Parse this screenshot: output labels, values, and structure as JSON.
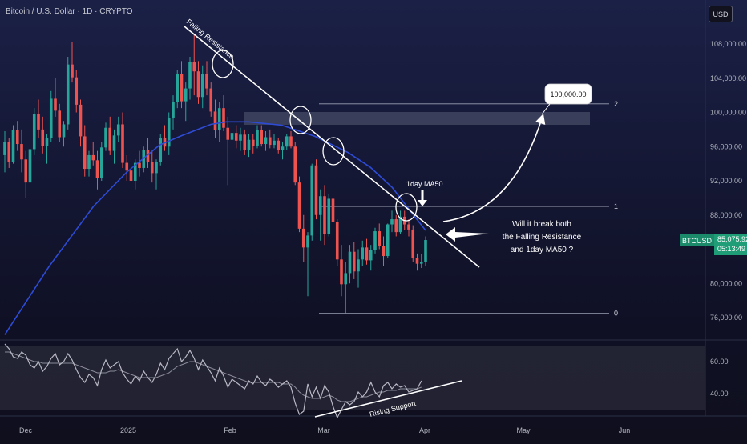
{
  "header": {
    "title": "Bitcoin / U.S. Dollar · 1D · CRYPTO"
  },
  "toolbar": {
    "currency": "USD"
  },
  "price_tag": {
    "symbol": "BTCUSD",
    "price": "85,075.92",
    "countdown": "05:13:49"
  },
  "colors": {
    "up": "#26a69a",
    "down": "#ef5350",
    "ma50": "#2e4bd6",
    "annotation": "#ffffff",
    "oscillator": "#b8b8c4",
    "accent": "#1f9d77"
  },
  "annotations": {
    "falling_resistance": "Falling Resistance",
    "rising_support": "Rising Support",
    "ma_label": "1day MA50",
    "target": "100,000.00",
    "question_lines": [
      "Will it break both",
      "the Falling Resistance",
      "and 1day MA50 ?"
    ],
    "fib_labels": [
      "2",
      "1",
      "0"
    ]
  },
  "chart_data": [
    {
      "type": "candlestick",
      "title": "Bitcoin / U.S. Dollar · 1D · CRYPTO",
      "x_ticks": [
        "Dec",
        "2025",
        "Feb",
        "Mar",
        "Apr",
        "May",
        "Jun"
      ],
      "y_ticks": [
        "108,000.00",
        "104,000.00",
        "100,000.00",
        "96,000.00",
        "92,000.00",
        "88,000.00",
        "80,000.00",
        "76,000.00"
      ],
      "ylim": [
        74000,
        110500
      ],
      "candles": [
        [
          95000,
          97800,
          93000,
          96500
        ],
        [
          96500,
          97000,
          93500,
          94200
        ],
        [
          94200,
          98500,
          94000,
          97900
        ],
        [
          97900,
          99000,
          95500,
          96300
        ],
        [
          96300,
          98000,
          93000,
          94500
        ],
        [
          94500,
          95500,
          90000,
          91800
        ],
        [
          91800,
          96000,
          91000,
          95700
        ],
        [
          95700,
          100500,
          95000,
          99800
        ],
        [
          99800,
          101500,
          97000,
          98000
        ],
        [
          98000,
          99500,
          95200,
          96100
        ],
        [
          96100,
          97500,
          94000,
          97000
        ],
        [
          97000,
          102500,
          96500,
          101600
        ],
        [
          101600,
          104000,
          99500,
          100200
        ],
        [
          100200,
          101000,
          96500,
          97100
        ],
        [
          97100,
          99000,
          96000,
          98600
        ],
        [
          98600,
          106500,
          98000,
          105600
        ],
        [
          105600,
          108200,
          103500,
          104100
        ],
        [
          104100,
          105000,
          100000,
          100900
        ],
        [
          100900,
          101500,
          96000,
          97200
        ],
        [
          97200,
          98500,
          92500,
          93400
        ],
        [
          93400,
          95500,
          92500,
          95000
        ],
        [
          95000,
          96500,
          93800,
          94400
        ],
        [
          94400,
          95500,
          91000,
          92300
        ],
        [
          92300,
          96500,
          92000,
          95900
        ],
        [
          95900,
          98800,
          95500,
          98200
        ],
        [
          98200,
          99500,
          95000,
          95500
        ],
        [
          95500,
          98000,
          94000,
          97300
        ],
        [
          97300,
          99500,
          96500,
          98600
        ],
        [
          98600,
          100000,
          93500,
          94100
        ],
        [
          94100,
          95000,
          92000,
          93200
        ],
        [
          93200,
          94000,
          89500,
          92000
        ],
        [
          92000,
          94500,
          91000,
          94100
        ],
        [
          94100,
          95500,
          92500,
          93500
        ],
        [
          93500,
          96000,
          93000,
          95600
        ],
        [
          95600,
          97000,
          93500,
          94200
        ],
        [
          94200,
          95500,
          91800,
          92900
        ],
        [
          92900,
          94500,
          91000,
          94200
        ],
        [
          94200,
          97500,
          93800,
          97000
        ],
        [
          97000,
          98500,
          95500,
          96000
        ],
        [
          96000,
          100000,
          95000,
          99300
        ],
        [
          99300,
          102000,
          98000,
          101200
        ],
        [
          101200,
          105000,
          100500,
          104500
        ],
        [
          104500,
          106000,
          100500,
          101300
        ],
        [
          101300,
          103500,
          99000,
          102800
        ],
        [
          102800,
          106500,
          101500,
          105900
        ],
        [
          105900,
          109200,
          102000,
          104800
        ],
        [
          104800,
          106000,
          101000,
          101800
        ],
        [
          101800,
          105500,
          100500,
          104500
        ],
        [
          104500,
          106000,
          102000,
          102800
        ],
        [
          102800,
          103500,
          99500,
          100100
        ],
        [
          100100,
          101500,
          97000,
          97900
        ],
        [
          97900,
          101200,
          96500,
          100500
        ],
        [
          100500,
          102000,
          97800,
          98200
        ],
        [
          98200,
          99500,
          91500,
          96800
        ],
        [
          96800,
          99000,
          95500,
          97600
        ],
        [
          97600,
          98500,
          95800,
          96700
        ],
        [
          96700,
          98200,
          95500,
          97400
        ],
        [
          97400,
          98000,
          95000,
          95600
        ],
        [
          95600,
          97500,
          94800,
          96800
        ],
        [
          96800,
          97500,
          95200,
          96100
        ],
        [
          96100,
          98500,
          95800,
          97900
        ],
        [
          97900,
          98500,
          96000,
          96300
        ],
        [
          96300,
          97800,
          95500,
          97100
        ],
        [
          97100,
          98000,
          95800,
          96200
        ],
        [
          96200,
          97500,
          95800,
          96700
        ],
        [
          96700,
          97000,
          95200,
          95600
        ],
        [
          95600,
          96500,
          94500,
          96000
        ],
        [
          96000,
          97500,
          95600,
          97200
        ],
        [
          97200,
          97800,
          95800,
          96000
        ],
        [
          96000,
          96500,
          91500,
          91800
        ],
        [
          91800,
          92500,
          86000,
          86400
        ],
        [
          86400,
          88000,
          82500,
          84200
        ],
        [
          84200,
          86000,
          78500,
          85600
        ],
        [
          85600,
          94000,
          85000,
          93800
        ],
        [
          93800,
          94500,
          87500,
          88000
        ],
        [
          88000,
          91000,
          85000,
          90200
        ],
        [
          90200,
          91500,
          84500,
          85800
        ],
        [
          85800,
          90500,
          85500,
          89900
        ],
        [
          89900,
          92800,
          86500,
          87200
        ],
        [
          87200,
          87500,
          82000,
          82800
        ],
        [
          82800,
          84500,
          78500,
          79900
        ],
        [
          79900,
          82500,
          76500,
          81200
        ],
        [
          81200,
          84500,
          80000,
          83700
        ],
        [
          83700,
          84800,
          80500,
          81400
        ],
        [
          81400,
          84000,
          79500,
          82800
        ],
        [
          82800,
          85000,
          82000,
          84200
        ],
        [
          84200,
          85200,
          82200,
          82700
        ],
        [
          82700,
          84500,
          81500,
          83900
        ],
        [
          83900,
          86500,
          83500,
          86100
        ],
        [
          86100,
          87000,
          84000,
          84400
        ],
        [
          84400,
          85500,
          82000,
          83200
        ],
        [
          83200,
          87000,
          83000,
          86900
        ],
        [
          86900,
          88500,
          86000,
          87500
        ],
        [
          87500,
          88000,
          85500,
          86000
        ],
        [
          86000,
          88500,
          85800,
          87800
        ],
        [
          87800,
          88500,
          86200,
          86900
        ],
        [
          86900,
          87500,
          85500,
          86300
        ],
        [
          86300,
          86800,
          82500,
          83000
        ],
        [
          83000,
          83500,
          81500,
          82300
        ],
        [
          82300,
          83400,
          81800,
          82500
        ],
        [
          82500,
          85500,
          82000,
          85076
        ]
      ],
      "ma50": [
        [
          0,
          74000
        ],
        [
          20,
          82000
        ],
        [
          40,
          89000
        ],
        [
          55,
          93000
        ],
        [
          70,
          96200
        ],
        [
          80,
          97300
        ],
        [
          93,
          98600
        ],
        [
          100,
          98900
        ],
        [
          110,
          98900
        ],
        [
          125,
          98500
        ],
        [
          140,
          97200
        ],
        [
          155,
          95300
        ],
        [
          165,
          93600
        ],
        [
          175,
          91200
        ],
        [
          183,
          88500
        ],
        [
          190,
          86200
        ]
      ],
      "fib_levels": [
        {
          "label": "2",
          "value": 101000
        },
        {
          "label": "1",
          "value": 89000
        },
        {
          "label": "0",
          "value": 76500
        }
      ],
      "annotation_price": 100000
    },
    {
      "type": "line",
      "title": "",
      "y_ticks": [
        "60.00",
        "40.00"
      ],
      "series": [
        {
          "values": [
            71,
            68,
            63,
            62,
            66,
            64,
            58,
            56,
            60,
            54,
            57,
            62,
            65,
            58,
            60,
            65,
            61,
            55,
            50,
            47,
            52,
            50,
            45,
            55,
            61,
            56,
            58,
            60,
            53,
            49,
            46,
            51,
            48,
            54,
            50,
            47,
            52,
            59,
            55,
            62,
            65,
            68,
            60,
            63,
            67,
            62,
            55,
            61,
            57,
            53,
            48,
            56,
            51,
            44,
            49,
            47,
            45,
            43,
            48,
            46,
            51,
            47,
            45,
            49,
            47,
            44,
            46,
            48,
            44,
            34,
            27,
            29,
            46,
            38,
            44,
            37,
            45,
            41,
            32,
            25,
            30,
            35,
            33,
            35,
            41,
            38,
            41,
            47,
            41,
            38,
            45,
            47,
            43,
            46,
            44,
            45,
            41,
            42,
            43,
            48
          ]
        },
        {
          "values": [
            66,
            66,
            65,
            64,
            63,
            62,
            61,
            60,
            60,
            59,
            59,
            59,
            59,
            59,
            59,
            59,
            59,
            58,
            57,
            56,
            55,
            54,
            53,
            53,
            53,
            54,
            54,
            55,
            54,
            53,
            52,
            51,
            50,
            50,
            50,
            50,
            50,
            51,
            52,
            53,
            55,
            57,
            58,
            59,
            60,
            60,
            59,
            58,
            57,
            56,
            55,
            54,
            53,
            52,
            51,
            50,
            49,
            48,
            47,
            47,
            47,
            47,
            47,
            47,
            47,
            47,
            46,
            46,
            46,
            44,
            41,
            39,
            38,
            37,
            37,
            37,
            38,
            39,
            38,
            36,
            35,
            35,
            35,
            36,
            37,
            38,
            38,
            39,
            40,
            41,
            41,
            42,
            42,
            42,
            43,
            43,
            43,
            43,
            43,
            44
          ]
        }
      ]
    }
  ]
}
